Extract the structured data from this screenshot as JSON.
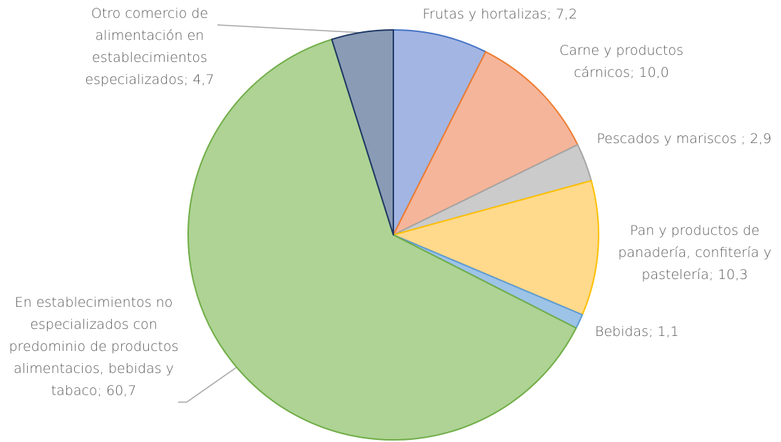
{
  "chart_data": {
    "type": "pie",
    "categories": [
      "Frutas y hortalizas;",
      "Carne y productos cárnicos;",
      "Pescados y mariscos ;",
      "Pan y productos de panadería, confitería y pastelería;",
      "Bebidas;",
      "En establecimientos no especializados con predominio de productos alimentacios, bebidas y tabaco;",
      "Otro comercio de alimentación en establecimientos especializados;"
    ],
    "values": [
      7.2,
      10.0,
      2.9,
      10.3,
      1.1,
      60.7,
      4.7
    ],
    "value_labels": [
      "7,2",
      "10,0",
      "2,9",
      "10,3",
      "1,1",
      "60,7",
      "4,7"
    ],
    "colors": [
      "#a3b5e3",
      "#f5b59a",
      "#cbcbcb",
      "#ffd98c",
      "#9dc3e6",
      "#aed394",
      "#8a9bb5"
    ],
    "edge_colors": [
      "#4472c4",
      "#ed7d31",
      "#a5a5a5",
      "#ffc000",
      "#5b9bd5",
      "#70ad47",
      "#1f3864"
    ]
  }
}
